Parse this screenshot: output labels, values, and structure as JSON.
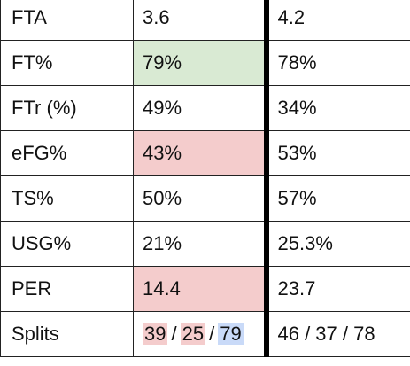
{
  "rows": [
    {
      "stat": "FTA",
      "a": "3.6",
      "b": "4.2"
    },
    {
      "stat": "FT%",
      "a": "79%",
      "b": "78%"
    },
    {
      "stat": "FTr (%)",
      "a": "49%",
      "b": "34%"
    },
    {
      "stat": "eFG%",
      "a": "43%",
      "b": "53%"
    },
    {
      "stat": "TS%",
      "a": "50%",
      "b": "57%"
    },
    {
      "stat": "USG%",
      "a": "21%",
      "b": "25.3%"
    },
    {
      "stat": "PER",
      "a": "14.4",
      "b": "23.7"
    }
  ],
  "splits": {
    "stat": "Splits",
    "a_parts": [
      "39",
      "25",
      "79"
    ],
    "separator": "/",
    "b": "46 / 37 / 78"
  },
  "colors": {
    "good": "#d9ead3",
    "bad": "#f4cccc",
    "blue": "#c9daf8",
    "divider": "#000000"
  }
}
